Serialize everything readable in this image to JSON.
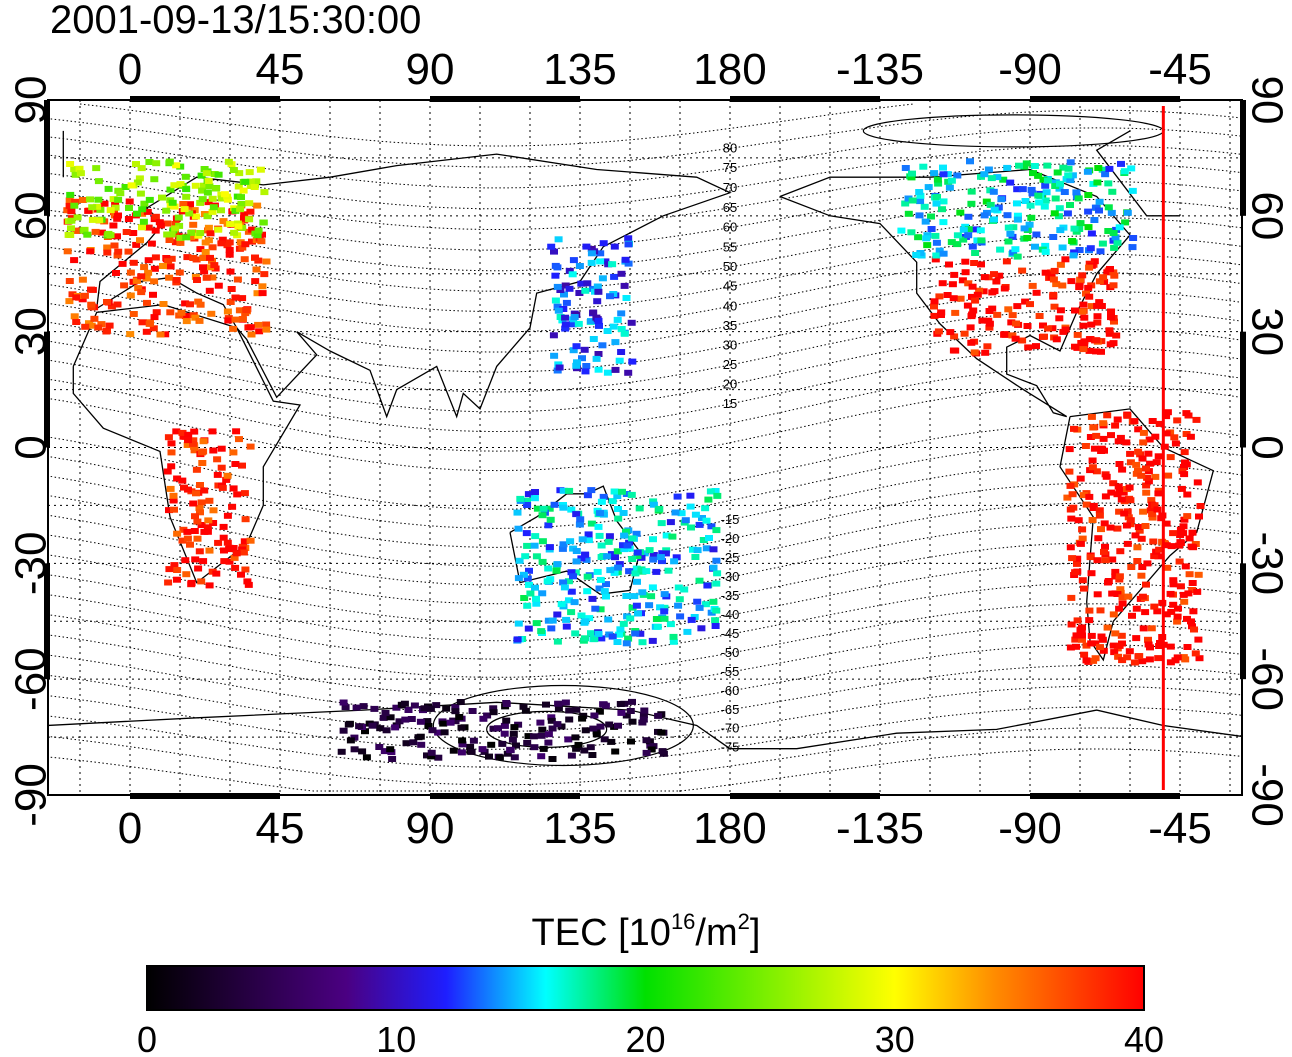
{
  "title": "2001-09-13/15:30:00",
  "map": {
    "top_lon_ticks": [
      "0",
      "45",
      "90",
      "135",
      "180",
      "-135",
      "-90",
      "-45"
    ],
    "bottom_lon_ticks": [
      "0",
      "45",
      "90",
      "135",
      "180",
      "-135",
      "-90",
      "-45"
    ],
    "lat_ticks": [
      {
        "lat": 90,
        "label": "90"
      },
      {
        "lat": 60,
        "label": "60"
      },
      {
        "lat": 30,
        "label": "30"
      },
      {
        "lat": 0,
        "label": "0"
      },
      {
        "lat": -30,
        "label": "-30"
      },
      {
        "lat": -60,
        "label": "-60"
      },
      {
        "lat": -90,
        "label": "-90"
      }
    ],
    "contour_labels": [
      "80",
      "75",
      "70",
      "65",
      "60",
      "55",
      "50",
      "45",
      "40",
      "35",
      "30",
      "25",
      "20",
      "15",
      "-15",
      "-20",
      "-25",
      "-30",
      "-35",
      "-40",
      "-45",
      "-50",
      "-55",
      "-60",
      "-65",
      "-70",
      "-75"
    ],
    "vertical_marker_lon": -50,
    "marker_color": "#ff0000"
  },
  "colorbar": {
    "label_prefix": "TEC  [10",
    "label_exp": "16",
    "label_mid": "/m",
    "label_exp2": "2",
    "label_suffix": "]",
    "ticks": [
      "0",
      "10",
      "20",
      "30",
      "40"
    ],
    "range": [
      0,
      40
    ],
    "colors": [
      "#000000",
      "#4b0082",
      "#1a1aff",
      "#00ffff",
      "#00e000",
      "#ffff00",
      "#ff8c00",
      "#ff0000"
    ]
  },
  "chart_data": {
    "type": "heatmap",
    "title": "2001-09-13/15:30:00",
    "variable": "TEC [10^16/m^2]",
    "value_range": [
      0,
      40
    ],
    "x_range_lon": [
      -25,
      335
    ],
    "y_range_lat": [
      -90,
      90
    ],
    "regions": [
      {
        "lon_range": [
          -20,
          40
        ],
        "lat_range": [
          30,
          65
        ],
        "tec": 38
      },
      {
        "lon_range": [
          -20,
          40
        ],
        "lat_range": [
          55,
          75
        ],
        "tec": 26
      },
      {
        "lon_range": [
          -120,
          -65
        ],
        "lat_range": [
          25,
          50
        ],
        "tec": 40
      },
      {
        "lon_range": [
          -130,
          -60
        ],
        "lat_range": [
          50,
          75
        ],
        "tec": 16
      },
      {
        "lon_range": [
          125,
          150
        ],
        "lat_range": [
          20,
          55
        ],
        "tec": 13
      },
      {
        "lon_range": [
          -80,
          -40
        ],
        "lat_range": [
          -55,
          10
        ],
        "tec": 40
      },
      {
        "lon_range": [
          10,
          35
        ],
        "lat_range": [
          -35,
          5
        ],
        "tec": 39
      },
      {
        "lon_range": [
          115,
          175
        ],
        "lat_range": [
          -50,
          -10
        ],
        "tec": 15
      },
      {
        "lon_range": [
          60,
          160
        ],
        "lat_range": [
          -80,
          -65
        ],
        "tec": 3
      }
    ]
  }
}
